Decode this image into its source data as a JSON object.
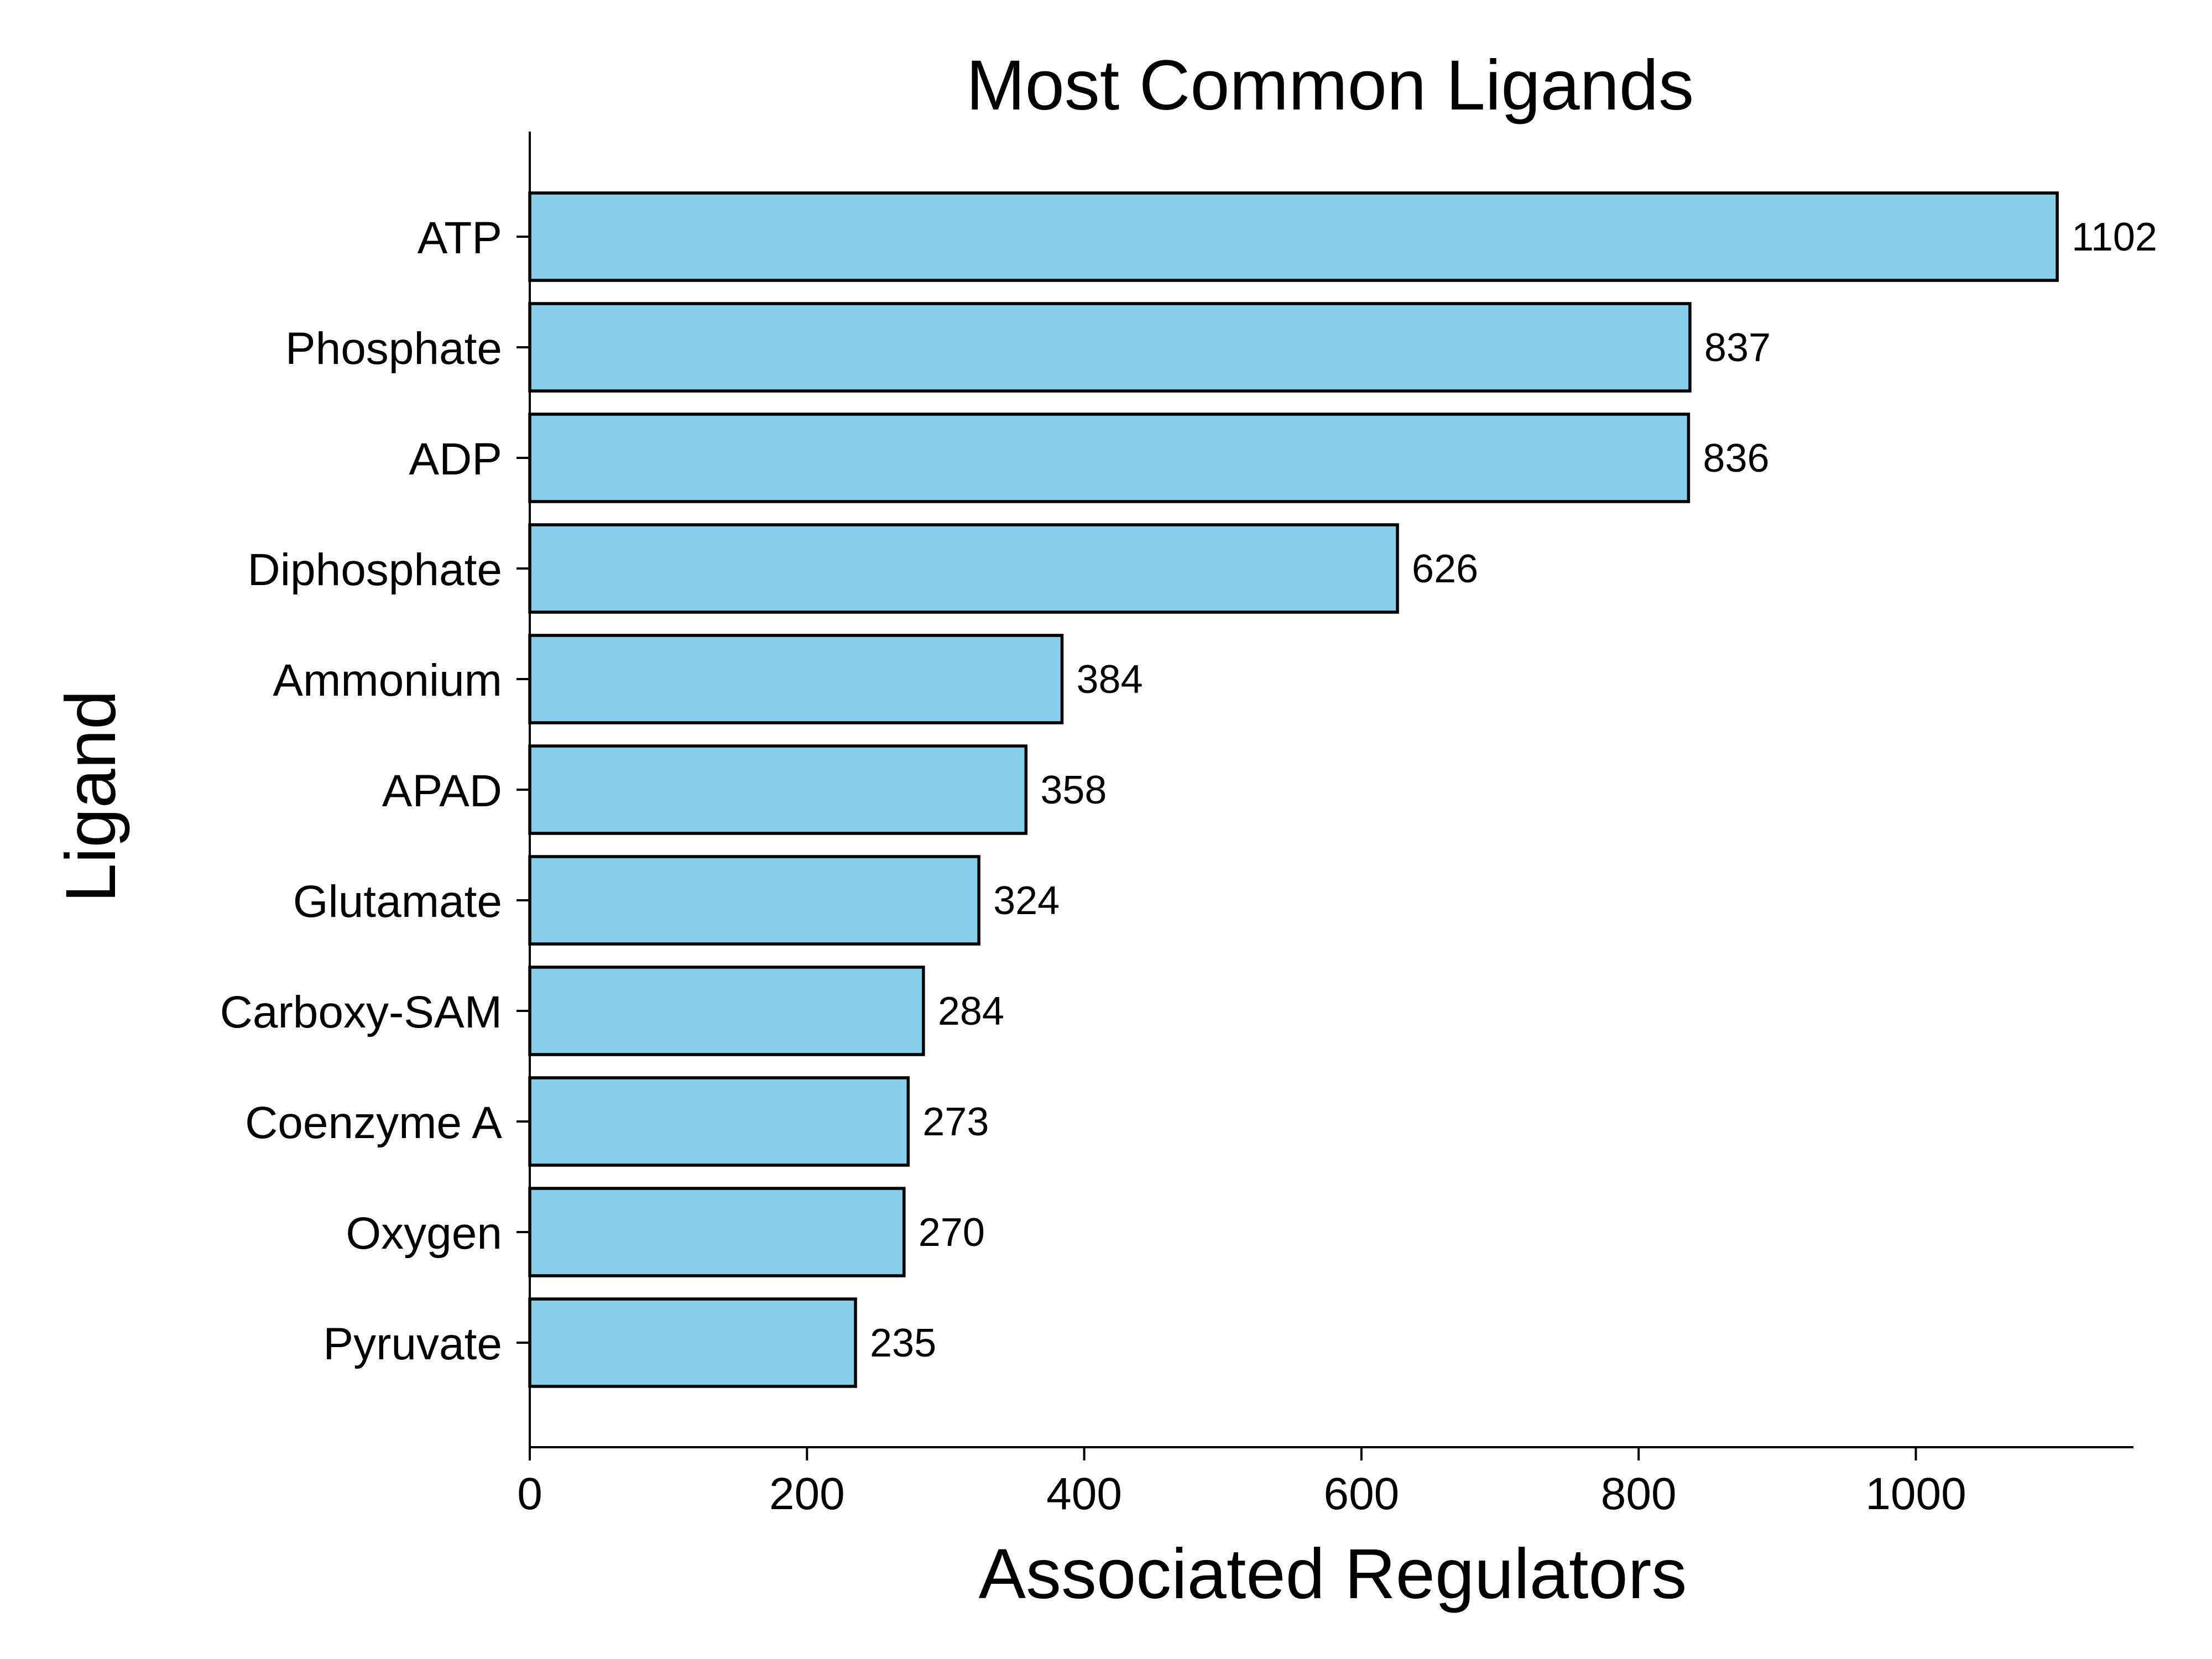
{
  "chart_data": {
    "type": "bar",
    "orientation": "horizontal",
    "title": "Most Common Ligands",
    "xlabel": "Associated Regulators",
    "ylabel": "Ligand",
    "categories": [
      "ATP",
      "Phosphate",
      "ADP",
      "Diphosphate",
      "Ammonium",
      "APAD",
      "Glutamate",
      "Carboxy-SAM",
      "Coenzyme A",
      "Oxygen",
      "Pyruvate"
    ],
    "values": [
      1102,
      837,
      836,
      626,
      384,
      358,
      324,
      284,
      273,
      270,
      235
    ],
    "xlim": [
      0,
      1157
    ],
    "xticks": [
      0,
      200,
      400,
      600,
      800,
      1000
    ],
    "bar_color": "#87ceeb",
    "edge_color": "#000000",
    "grid": false,
    "legend": "none",
    "data_labels": true
  }
}
